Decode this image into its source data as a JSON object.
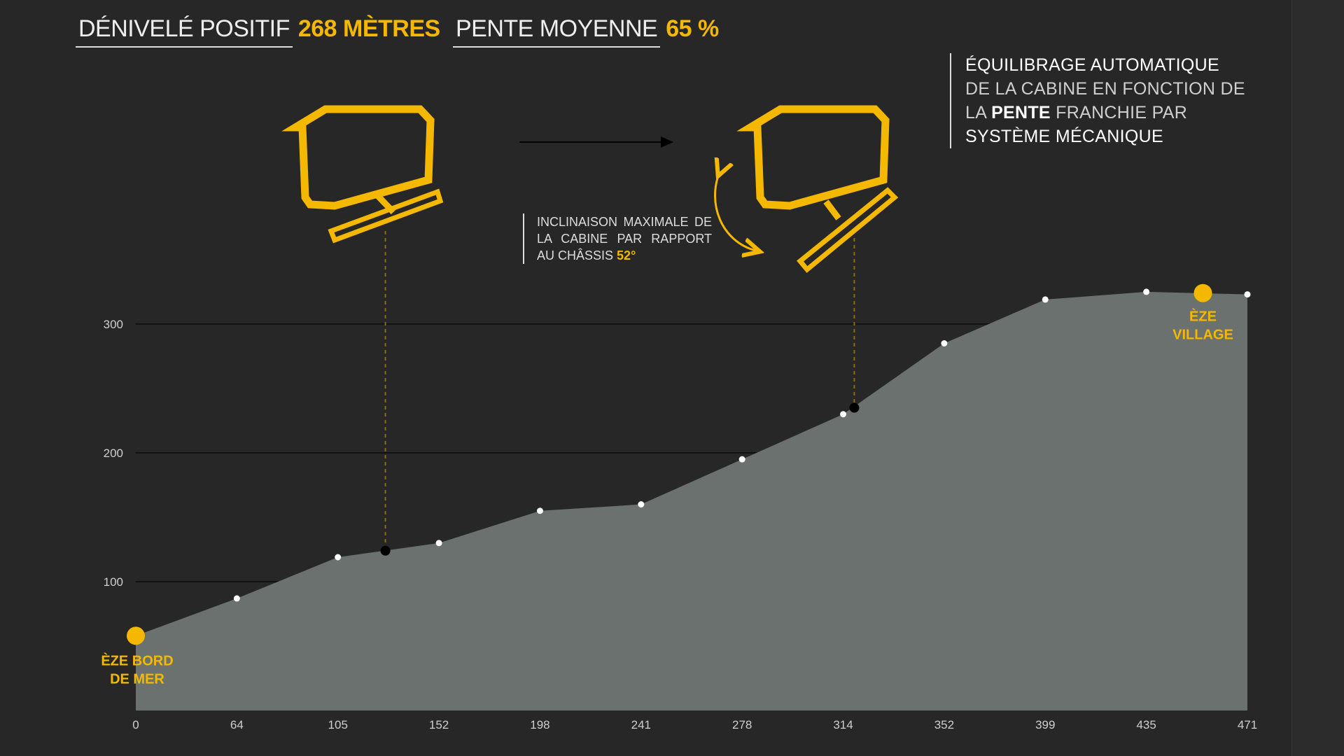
{
  "header": {
    "elevation_label": "DÉNIVELÉ POSITIF",
    "elevation_value": "268 MÈTRES",
    "slope_label": "PENTE MOYENNE",
    "slope_value": "65 %"
  },
  "info": {
    "line1": "ÉQUILIBRAGE AUTOMATIQUE",
    "line2": "DE LA CABINE EN FONCTION DE",
    "line3_a": "LA",
    "line3_b": "PENTE",
    "line3_c": "FRANCHIE PAR",
    "line4": "SYSTÈME MÉCANIQUE"
  },
  "incline_note": {
    "text": "INCLINAISON MAXIMALE DE LA CABINE PAR RAPPORT AU CHÂSSIS",
    "value": "52°"
  },
  "colors": {
    "background": "#272727",
    "accent": "#f5b800",
    "area_fill": "#6b716f",
    "gridline": "#111111",
    "point": "#ffffff"
  },
  "chart_data": {
    "type": "area",
    "x_tick_labels": [
      "0",
      "64",
      "105",
      "152",
      "198",
      "241",
      "278",
      "314",
      "352",
      "399",
      "435",
      "471"
    ],
    "y_ticks": [
      100,
      200,
      300
    ],
    "xlim": [
      0,
      11
    ],
    "ylim": [
      0,
      357
    ],
    "grid": true,
    "points": [
      {
        "x": 0,
        "y": 58
      },
      {
        "x": 1,
        "y": 87
      },
      {
        "x": 2,
        "y": 119
      },
      {
        "x": 3,
        "y": 130
      },
      {
        "x": 4,
        "y": 155
      },
      {
        "x": 5,
        "y": 160
      },
      {
        "x": 6,
        "y": 195
      },
      {
        "x": 7,
        "y": 230
      },
      {
        "x": 8,
        "y": 285
      },
      {
        "x": 9,
        "y": 319
      },
      {
        "x": 10,
        "y": 325
      },
      {
        "x": 11,
        "y": 323
      }
    ],
    "cabin_markers": [
      {
        "x": 2.47,
        "y": 124
      },
      {
        "x": 7.11,
        "y": 235
      }
    ],
    "endpoints": [
      {
        "name_lines": [
          "ÈZE BORD",
          "DE MER"
        ],
        "x": 0,
        "y": 58
      },
      {
        "name_lines": [
          "ÈZE",
          "VILLAGE"
        ],
        "x": 10.56,
        "y": 324
      }
    ]
  }
}
